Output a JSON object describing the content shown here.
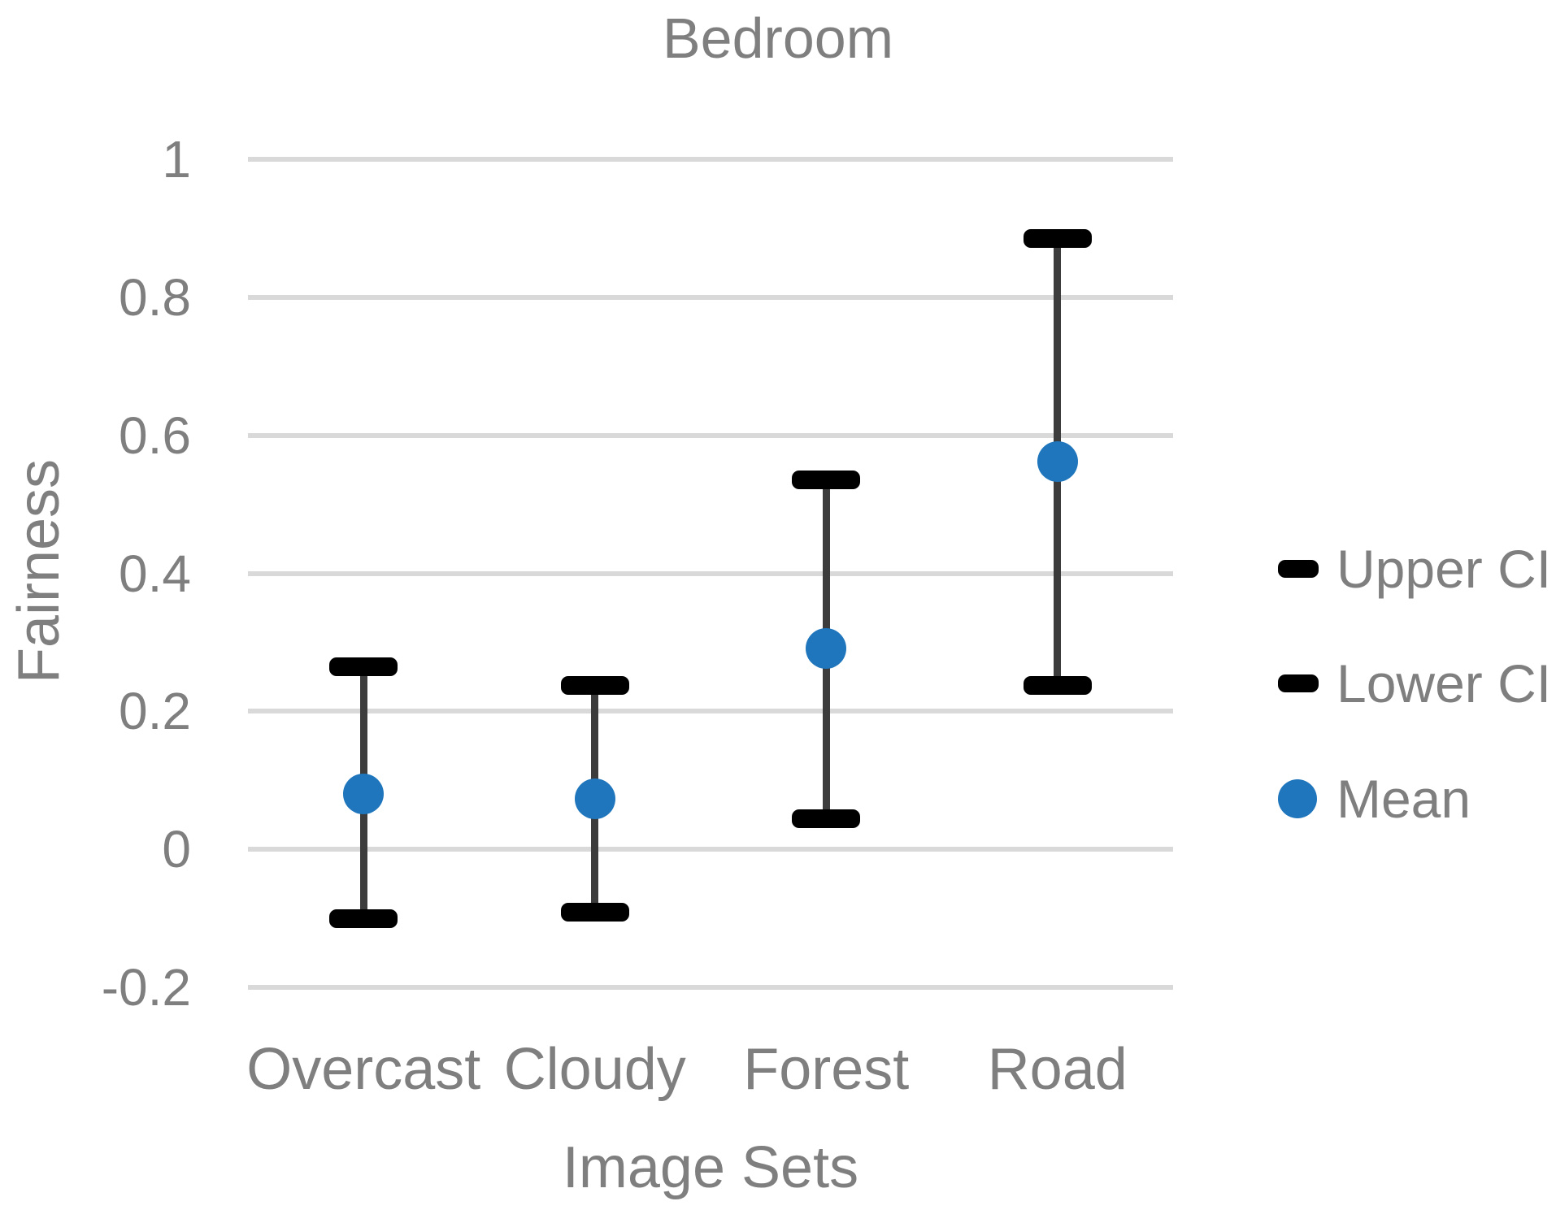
{
  "chart_data": {
    "type": "scatter",
    "title": "Bedroom",
    "xlabel": "Image Sets",
    "ylabel": "Fairness",
    "categories": [
      "Overcast",
      "Cloudy",
      "Forest",
      "Road"
    ],
    "series": [
      {
        "name": "Upper CI",
        "marker": "dash",
        "values": [
          0.265,
          0.238,
          0.535,
          0.885
        ]
      },
      {
        "name": "Lower CI",
        "marker": "dash",
        "values": [
          -0.101,
          -0.091,
          0.044,
          0.238
        ]
      },
      {
        "name": "Mean",
        "marker": "circle",
        "values": [
          0.08,
          0.073,
          0.291,
          0.562
        ]
      }
    ],
    "ylim": [
      -0.2,
      1.0
    ],
    "yticks": [
      1,
      0.8,
      0.6,
      0.4,
      0.2,
      0,
      -0.2
    ],
    "ytick_labels": [
      "1",
      "0.8",
      "0.6",
      "0.4",
      "0.2",
      "0",
      "-0.2"
    ],
    "grid": true,
    "legend_position": "right",
    "legend": [
      "Upper CI",
      "Lower CI",
      "Mean"
    ]
  },
  "colors": {
    "mean_marker": "#1f76bc",
    "ci_marker": "#000000",
    "error_line": "#3c3c3c",
    "gridline": "#d9d9d9",
    "text": "#7f7f7f"
  }
}
